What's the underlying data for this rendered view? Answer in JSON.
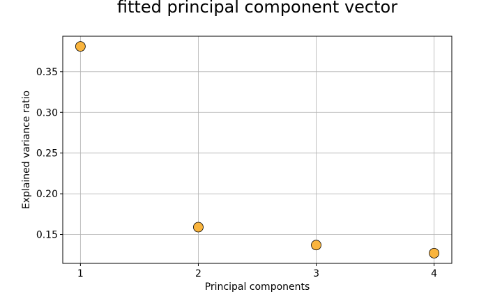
{
  "chart_data": {
    "type": "scatter",
    "title": "fitted principal component vector",
    "xlabel": "Principal components",
    "ylabel": "Explained variance ratio",
    "x": [
      1,
      2,
      3,
      4
    ],
    "y": [
      0.381,
      0.159,
      0.137,
      0.127
    ],
    "xticks": [
      "1",
      "2",
      "3",
      "4"
    ],
    "yticks": [
      "0.15",
      "0.20",
      "0.25",
      "0.30",
      "0.35"
    ],
    "ytick_values": [
      0.15,
      0.2,
      0.25,
      0.3,
      0.35
    ],
    "xlim": [
      0.85,
      4.15
    ],
    "ylim": [
      0.1145,
      0.3935
    ],
    "grid": true,
    "marker_color": "#f9b43d",
    "marker_edge_color": "#000000"
  }
}
